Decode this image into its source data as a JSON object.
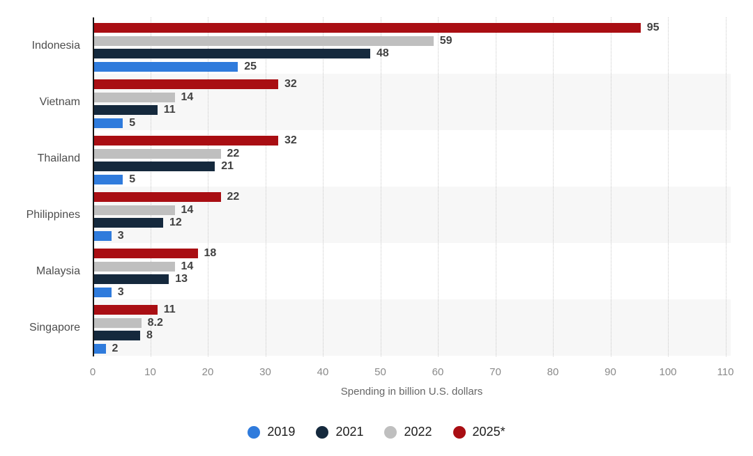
{
  "chart_data": {
    "type": "bar",
    "orientation": "horizontal",
    "title": "",
    "xlabel": "Spending in billion U.S. dollars",
    "ylabel": "",
    "categories": [
      "Indonesia",
      "Vietnam",
      "Thailand",
      "Philippines",
      "Malaysia",
      "Singapore"
    ],
    "series": [
      {
        "name": "2019",
        "color": "#2f7bdc",
        "values": [
          25,
          5,
          5,
          3,
          3,
          2
        ]
      },
      {
        "name": "2021",
        "color": "#15293d",
        "values": [
          48,
          11,
          21,
          12,
          13,
          8
        ]
      },
      {
        "name": "2022",
        "color": "#bfbfbf",
        "values": [
          59,
          14,
          22,
          14,
          14,
          8.2
        ]
      },
      {
        "name": "2025*",
        "color": "#a90e13",
        "values": [
          95,
          32,
          32,
          22,
          18,
          11
        ]
      }
    ],
    "xlim": [
      0,
      110
    ],
    "xticks": [
      0,
      10,
      20,
      30,
      40,
      50,
      60,
      70,
      80,
      90,
      100,
      110
    ],
    "bar_order_top_to_bottom": [
      "2025*",
      "2022",
      "2021",
      "2019"
    ],
    "legend_position": "bottom",
    "grid": "vertical-dotted",
    "band_colors": [
      "#ffffff",
      "#f7f7f7"
    ],
    "gridline_color": "#c9c9c9",
    "axis_line_color": "#161616",
    "value_label_color": "#404040",
    "category_label_color": "#4d4d4d",
    "tick_label_color": "#8a8a8a"
  }
}
